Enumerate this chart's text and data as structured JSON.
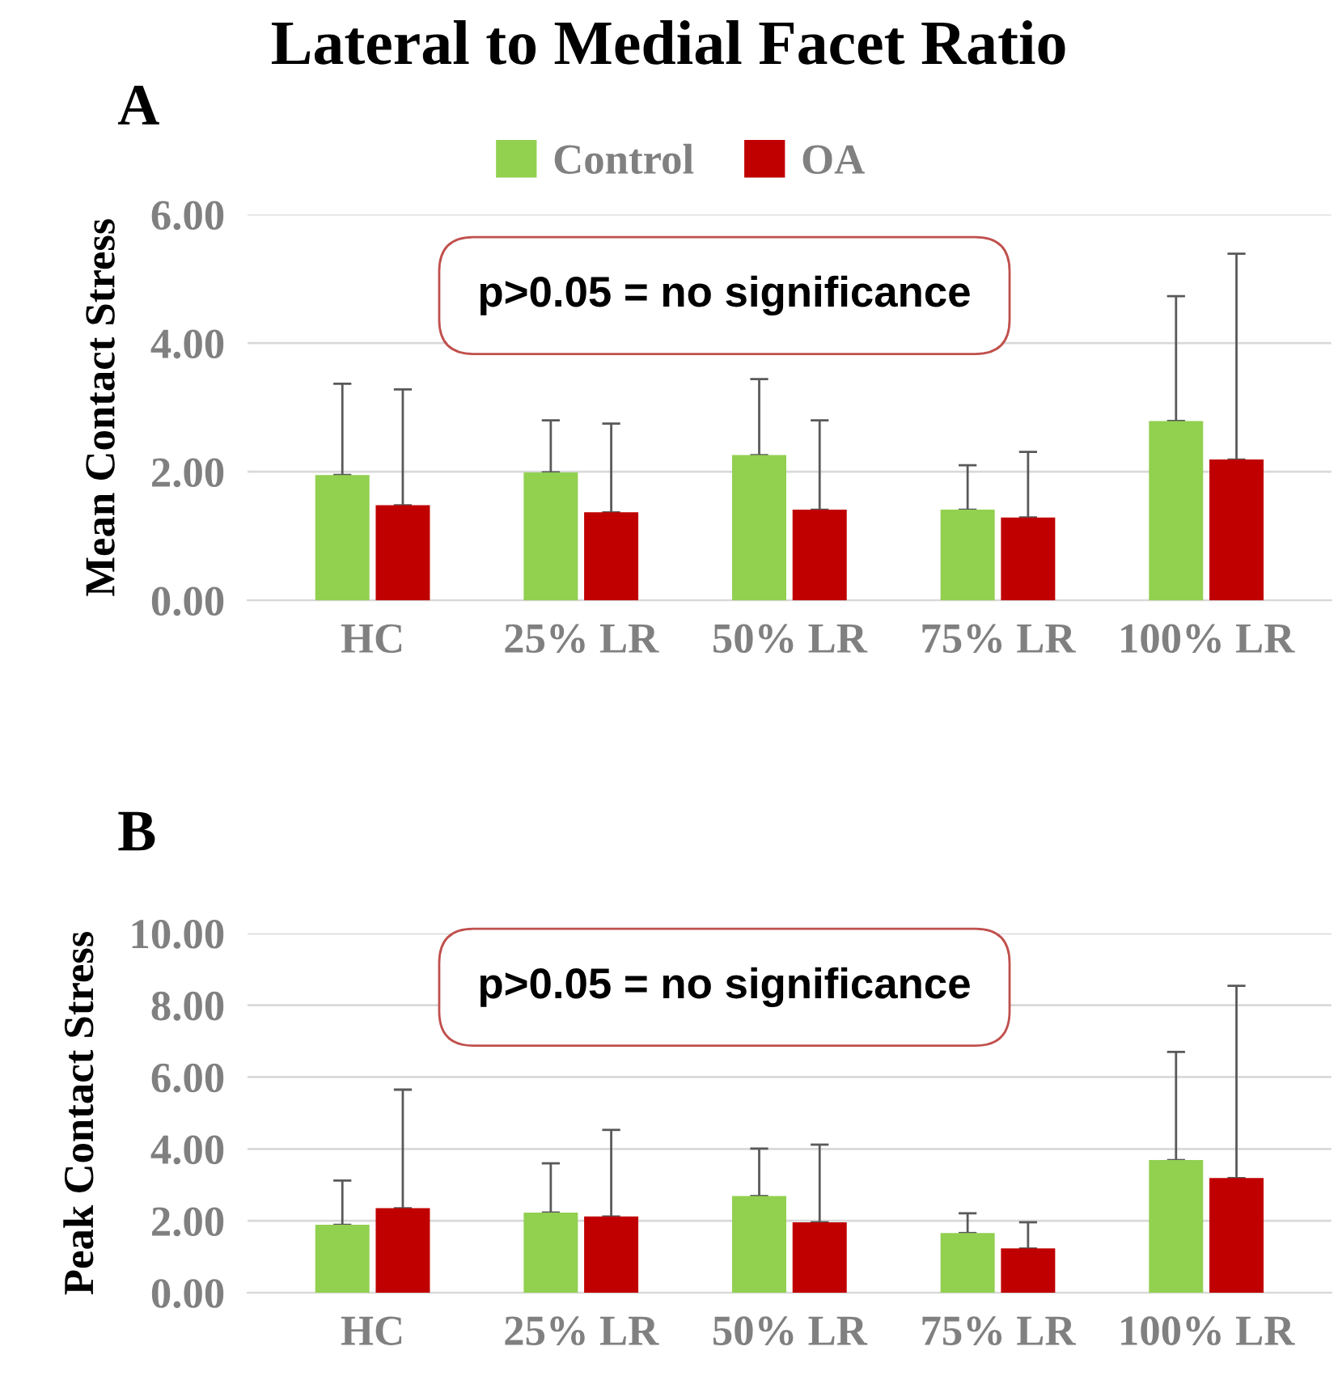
{
  "chart_data": [
    {
      "type": "bar",
      "title": "Lateral to Medial Facet Ratio",
      "ylabel": "Mean Contact Stress",
      "categories": [
        "HC",
        "25% LR",
        "50% LR",
        "75% LR",
        "100% LR"
      ],
      "series": [
        {
          "name": "Control",
          "color": "#92d050",
          "values": [
            1.95,
            1.99,
            2.26,
            1.41,
            2.79
          ],
          "errors": [
            [
              1.95,
              3.37
            ],
            [
              1.99,
              2.8
            ],
            [
              2.26,
              3.44
            ],
            [
              1.41,
              2.1
            ],
            [
              2.79,
              4.73
            ]
          ]
        },
        {
          "name": "OA",
          "color": "#c00000",
          "values": [
            1.48,
            1.37,
            1.41,
            1.29,
            2.19
          ],
          "errors": [
            [
              1.48,
              3.28
            ],
            [
              1.37,
              2.75
            ],
            [
              1.41,
              2.8
            ],
            [
              1.29,
              2.31
            ],
            [
              2.19,
              5.39
            ]
          ]
        }
      ],
      "ylim": [
        0,
        6
      ],
      "yticks": [
        {
          "value": 0,
          "label": "0.00"
        },
        {
          "value": 2,
          "label": "2.00"
        },
        {
          "value": 4,
          "label": "4.00"
        },
        {
          "value": 6,
          "label": "6.00"
        }
      ],
      "grid": "y",
      "legend": "top",
      "annotations": [
        "A",
        "p>0.05 = no significance"
      ]
    },
    {
      "type": "bar",
      "ylabel": "Peak Contact Stress",
      "categories": [
        "HC",
        "25% LR",
        "50% LR",
        "75% LR",
        "100% LR"
      ],
      "series": [
        {
          "color": "#92d050",
          "values": [
            1.89,
            2.23,
            2.69,
            1.66,
            3.69
          ],
          "errors": [
            [
              1.89,
              3.12
            ],
            [
              2.23,
              3.6
            ],
            [
              2.69,
              4.01
            ],
            [
              1.66,
              2.21
            ],
            [
              3.69,
              6.7
            ]
          ]
        },
        {
          "color": "#c00000",
          "values": [
            2.35,
            2.12,
            1.96,
            1.23,
            3.19
          ],
          "errors": [
            [
              2.35,
              5.65
            ],
            [
              2.12,
              4.53
            ],
            [
              1.96,
              4.12
            ],
            [
              1.23,
              1.96
            ],
            [
              3.19,
              8.54
            ]
          ]
        }
      ],
      "ylim": [
        0,
        10
      ],
      "yticks": [
        {
          "value": 0,
          "label": "0.00"
        },
        {
          "value": 2,
          "label": "2.00"
        },
        {
          "value": 4,
          "label": "4.00"
        },
        {
          "value": 6,
          "label": "6.00"
        },
        {
          "value": 8,
          "label": "8.00"
        },
        {
          "value": 10,
          "label": "10.00"
        }
      ],
      "grid": "y",
      "annotations": [
        "B",
        "p>0.05 = no significance"
      ]
    }
  ]
}
